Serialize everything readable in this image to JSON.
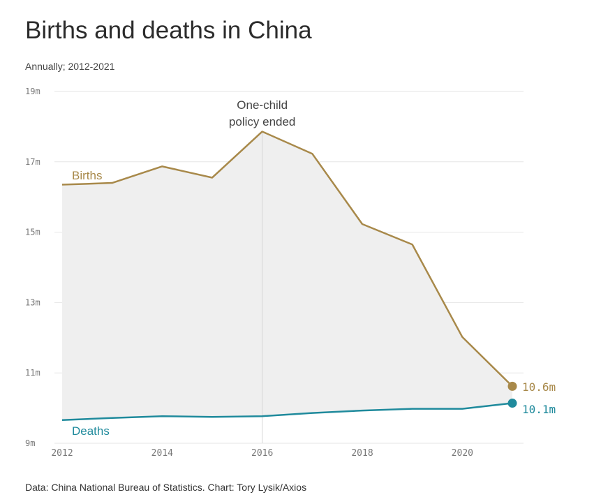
{
  "header": {
    "title": "Births and deaths in China",
    "subtitle": "Annually; 2012-2021"
  },
  "footer": {
    "source": "Data: China National Bureau of Statistics. Chart: Tory Lysik/Axios"
  },
  "colors": {
    "births": "#a8894a",
    "deaths": "#1f8a9c",
    "fill": "#efefef",
    "grid": "#e6e6e6"
  },
  "chart_data": {
    "type": "line",
    "title": "Births and deaths in China",
    "subtitle": "Annually; 2012-2021",
    "x": [
      2012,
      2013,
      2014,
      2015,
      2016,
      2017,
      2018,
      2019,
      2020,
      2021
    ],
    "x_ticks": [
      "2012",
      "2014",
      "2016",
      "2018",
      "2020"
    ],
    "y_ticks": [
      "9m",
      "11m",
      "13m",
      "15m",
      "17m",
      "19m"
    ],
    "ylim": [
      9,
      19
    ],
    "ylabel": "",
    "xlabel": "",
    "grid": true,
    "series": [
      {
        "name": "Births",
        "values": [
          16.35,
          16.4,
          16.87,
          16.55,
          17.86,
          17.23,
          15.23,
          14.65,
          12.02,
          10.62
        ],
        "end_label": "10.6m"
      },
      {
        "name": "Deaths",
        "values": [
          9.66,
          9.72,
          9.77,
          9.75,
          9.77,
          9.86,
          9.93,
          9.98,
          9.98,
          10.14
        ],
        "end_label": "10.1m"
      }
    ],
    "annotations": [
      {
        "x": 2016,
        "text_lines": [
          "One-child",
          "policy ended"
        ]
      }
    ]
  }
}
